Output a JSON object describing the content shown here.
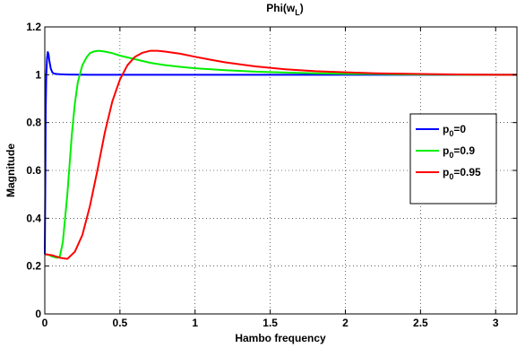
{
  "chart_data": {
    "type": "line",
    "title": {
      "main": "Phi(w",
      "sub": "L",
      "close": ")"
    },
    "xlabel": "Hambo frequency",
    "ylabel": "Magnitude",
    "xlim": [
      0,
      3.1416
    ],
    "ylim": [
      0,
      1.2
    ],
    "xticks": [
      0,
      0.5,
      1,
      1.5,
      2,
      2.5,
      3
    ],
    "yticks": [
      0,
      0.2,
      0.4,
      0.6,
      0.8,
      1,
      1.2
    ],
    "grid": true,
    "legend_position": "right",
    "series": [
      {
        "label": {
          "main": "p",
          "sub": "0",
          "suffix": "=0"
        },
        "color": "#0000ff",
        "x": [
          0,
          0.003,
          0.006,
          0.01,
          0.015,
          0.02,
          0.025,
          0.03,
          0.04,
          0.05,
          0.06,
          0.08,
          0.1,
          0.15,
          0.3,
          0.6,
          1,
          1.5,
          2,
          2.5,
          3,
          3.1416
        ],
        "y": [
          0.25,
          0.5,
          0.85,
          1.0,
          1.07,
          1.095,
          1.085,
          1.06,
          1.025,
          1.01,
          1.005,
          1.003,
          1.002,
          1.001,
          1.0,
          1.0,
          1.0,
          1.0,
          1.0,
          1.0,
          1.0,
          1.0
        ]
      },
      {
        "label": {
          "main": "p",
          "sub": "0",
          "suffix": "=0.9"
        },
        "color": "#00ee00",
        "x": [
          0,
          0.02,
          0.05,
          0.08,
          0.1,
          0.12,
          0.15,
          0.18,
          0.2,
          0.22,
          0.25,
          0.28,
          0.3,
          0.33,
          0.36,
          0.4,
          0.45,
          0.5,
          0.6,
          0.7,
          0.8,
          0.9,
          1.0,
          1.2,
          1.4,
          1.6,
          1.8,
          2.0,
          2.2,
          2.5,
          2.8,
          3.1416
        ],
        "y": [
          0.25,
          0.248,
          0.24,
          0.235,
          0.24,
          0.3,
          0.5,
          0.75,
          0.88,
          0.97,
          1.04,
          1.075,
          1.09,
          1.098,
          1.1,
          1.097,
          1.09,
          1.08,
          1.065,
          1.05,
          1.04,
          1.033,
          1.027,
          1.019,
          1.013,
          1.009,
          1.006,
          1.004,
          1.003,
          1.001,
          1.0,
          1.0
        ]
      },
      {
        "label": {
          "main": "p",
          "sub": "0",
          "suffix": "=0.95"
        },
        "color": "#ff0000",
        "x": [
          0,
          0.05,
          0.1,
          0.15,
          0.2,
          0.25,
          0.3,
          0.35,
          0.4,
          0.45,
          0.5,
          0.55,
          0.6,
          0.65,
          0.7,
          0.75,
          0.8,
          0.9,
          1.0,
          1.1,
          1.2,
          1.4,
          1.6,
          1.8,
          2.0,
          2.2,
          2.4,
          2.6,
          2.8,
          3.0,
          3.1416
        ],
        "y": [
          0.25,
          0.245,
          0.235,
          0.23,
          0.26,
          0.33,
          0.45,
          0.6,
          0.76,
          0.89,
          0.98,
          1.04,
          1.075,
          1.092,
          1.1,
          1.1,
          1.097,
          1.088,
          1.075,
          1.063,
          1.052,
          1.035,
          1.023,
          1.015,
          1.01,
          1.006,
          1.004,
          1.002,
          1.001,
          1.0,
          1.0
        ]
      }
    ]
  }
}
